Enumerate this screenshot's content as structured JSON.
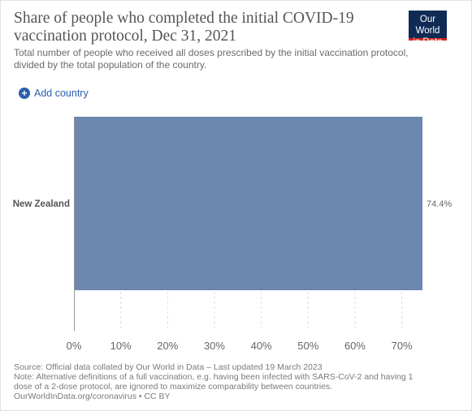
{
  "header": {
    "title": "Share of people who completed the initial COVID-19 vaccination protocol, Dec 31, 2021",
    "subtitle": "Total number of people who received all doses prescribed by the initial vaccination protocol, divided by the total population of the country.",
    "logo_line1": "Our World",
    "logo_line2": "in Data"
  },
  "controls": {
    "add_country_label": "Add country",
    "add_icon": "plus-circle-icon"
  },
  "chart_data": {
    "type": "bar",
    "orientation": "horizontal",
    "categories": [
      "New Zealand"
    ],
    "values": [
      74.4
    ],
    "value_labels": [
      "74.4%"
    ],
    "xticks": [
      "0%",
      "10%",
      "20%",
      "30%",
      "40%",
      "50%",
      "60%",
      "70%"
    ],
    "xtick_values": [
      0,
      10,
      20,
      30,
      40,
      50,
      60,
      70
    ],
    "xlim": [
      0,
      74.4
    ],
    "grid": true,
    "bar_color": "#6d87af"
  },
  "footer": {
    "source": "Source: Official data collated by Our World in Data – Last updated 19 March 2023",
    "note_line1": "Note: Alternative definitions of a full vaccination, e.g. having been infected with SARS-CoV-2 and having 1",
    "note_line2": "dose of a 2-dose protocol, are ignored to maximize comparability between countries.",
    "link": "OurWorldInData.org/coronavirus",
    "license": " • CC BY"
  }
}
